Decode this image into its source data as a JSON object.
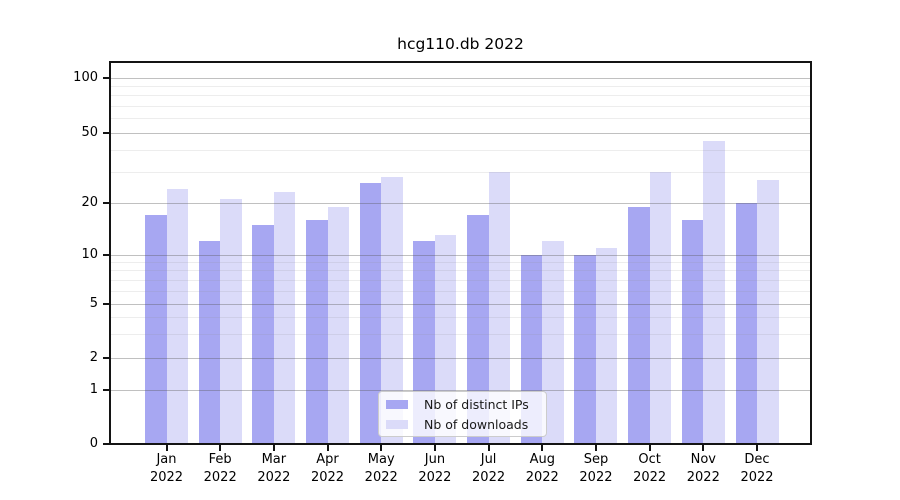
{
  "title": "hcg110.db 2022",
  "legend": {
    "items": [
      {
        "label": "Nb of distinct IPs"
      },
      {
        "label": "Nb of downloads"
      }
    ]
  },
  "chart_data": {
    "type": "bar",
    "title": "hcg110.db 2022",
    "categories": [
      "Jan 2022",
      "Feb 2022",
      "Mar 2022",
      "Apr 2022",
      "May 2022",
      "Jun 2022",
      "Jul 2022",
      "Aug 2022",
      "Sep 2022",
      "Oct 2022",
      "Nov 2022",
      "Dec 2022"
    ],
    "x_tick_top": [
      "Jan",
      "Feb",
      "Mar",
      "Apr",
      "May",
      "Jun",
      "Jul",
      "Aug",
      "Sep",
      "Oct",
      "Nov",
      "Dec"
    ],
    "x_tick_bottom": "2022",
    "series": [
      {
        "name": "Nb of distinct IPs",
        "color": "#a7a7f2",
        "values": [
          17,
          12,
          15,
          16,
          26,
          12,
          17,
          10,
          10,
          19,
          16,
          20
        ]
      },
      {
        "name": "Nb of downloads",
        "color": "#dbdbf9",
        "values": [
          24,
          21,
          23,
          19,
          28,
          13,
          30,
          12,
          11,
          30,
          45,
          27
        ]
      }
    ],
    "yscale": "symlog",
    "y_axis_tick_labels": [
      "100",
      "50",
      "20",
      "10",
      "5",
      "2",
      "1",
      "0"
    ],
    "y_major_tick_values": [
      100,
      50,
      20,
      10,
      5,
      2,
      1,
      0
    ],
    "y_minor_tick_values": [
      3,
      4,
      6,
      7,
      8,
      9,
      30,
      40,
      60,
      70,
      80,
      90
    ],
    "ylim": [
      0,
      140
    ],
    "grid": true,
    "legend_position": "lower center"
  },
  "colors": {
    "ips_bar": "#a7a7f2",
    "downloads_bar": "#dbdbf9",
    "grid_major": "#c8c8c8",
    "grid_minor": "#ebebeb",
    "spine": "#141414",
    "text": "#000000",
    "legend_border": "#cccccc"
  }
}
